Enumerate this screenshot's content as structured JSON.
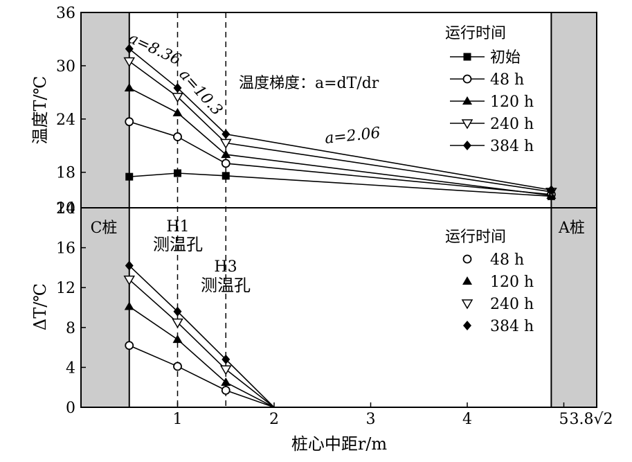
{
  "chart_data": [
    {
      "type": "line",
      "ylabel": "温度T/℃",
      "ylim": [
        14,
        36
      ],
      "yticks": [
        "14",
        "18",
        "24",
        "30",
        "36"
      ],
      "x": [
        0.5,
        1,
        1.5,
        4.87
      ],
      "series": [
        {
          "name": "初始",
          "marker": "square-filled",
          "values": [
            17.5,
            17.9,
            17.6,
            15.3
          ]
        },
        {
          "name": "48 h",
          "marker": "circle-open",
          "values": [
            23.7,
            22.0,
            19.0,
            15.5
          ]
        },
        {
          "name": "120 h",
          "marker": "triangle-up-filled",
          "values": [
            27.5,
            24.7,
            20.0,
            15.4
          ]
        },
        {
          "name": "240 h",
          "marker": "triangle-down-open",
          "values": [
            30.5,
            26.5,
            21.3,
            15.8
          ]
        },
        {
          "name": "384 h",
          "marker": "diamond-filled",
          "values": [
            31.9,
            27.5,
            22.3,
            16.0
          ]
        }
      ],
      "legend_title": "运行时间",
      "legend_position": "top-right",
      "annotations": {
        "gradient_label": "温度梯度：a=dT/dr",
        "slope_1": "a=8.36",
        "slope_2": "a=10.3",
        "slope_3": "a=2.06"
      }
    },
    {
      "type": "line",
      "xlabel": "桩心中距r/m",
      "ylabel": "ΔT/℃",
      "ylim": [
        0,
        20
      ],
      "yticks": [
        "0",
        "4",
        "8",
        "12",
        "16",
        "20"
      ],
      "xticks": [
        "1",
        "2",
        "3",
        "4",
        "5",
        "3.8√2"
      ],
      "x": [
        0.5,
        1,
        1.5
      ],
      "x_end": 2,
      "series": [
        {
          "name": "48 h",
          "marker": "circle-open",
          "values": [
            6.2,
            4.1,
            1.7
          ]
        },
        {
          "name": "120 h",
          "marker": "triangle-up-filled",
          "values": [
            10.1,
            6.8,
            2.5
          ]
        },
        {
          "name": "240 h",
          "marker": "triangle-down-open",
          "values": [
            12.8,
            8.5,
            3.8
          ]
        },
        {
          "name": "384 h",
          "marker": "diamond-filled",
          "values": [
            14.2,
            9.6,
            4.8
          ]
        }
      ],
      "legend_title": "运行时间",
      "legend_position": "right",
      "annotations": {
        "pile_c": "C桩",
        "pile_a": "A桩",
        "h1_name": "H1",
        "h1_desc": "测温孔",
        "h3_name": "H3",
        "h3_desc": "测温孔"
      }
    }
  ]
}
